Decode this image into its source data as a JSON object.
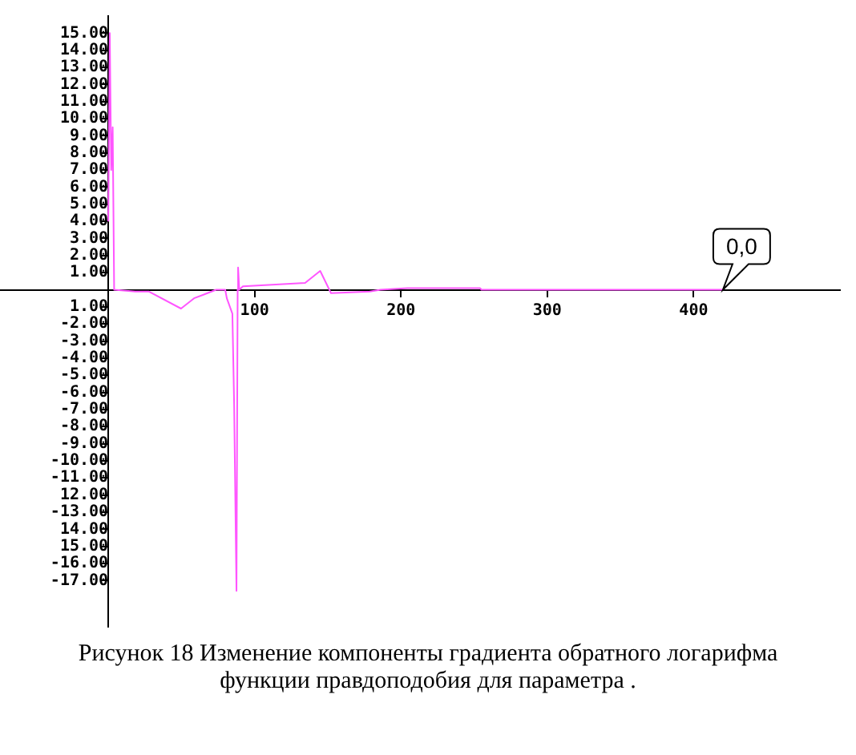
{
  "chart_data": {
    "type": "line",
    "title": "Рисунок 18 Изменение компоненты градиента обратного логарифма функции правдоподобия для параметра .",
    "x": [
      0,
      1,
      2,
      3,
      4,
      18.5,
      27.6,
      49.7,
      58.6,
      73.7,
      79.9,
      81,
      84.8,
      86,
      87.6,
      88.4,
      88.7,
      89.5,
      92,
      134.5,
      144.8,
      152.2,
      178.7,
      186,
      204.4,
      254,
      255,
      420
    ],
    "series": [
      {
        "color": "#ff55ff",
        "values": [
          4,
          15,
          7,
          9.5,
          0,
          -0.1,
          -0.1,
          -1.1,
          -0.5,
          0,
          0,
          -0.5,
          -1.4,
          -6.7,
          -17.6,
          0,
          1.3,
          0,
          0.2,
          0.4,
          1.1,
          -0.2,
          -0.1,
          0,
          0.1,
          0.1,
          0,
          0
        ]
      }
    ],
    "xlim": [
      -74,
      500
    ],
    "ylim": [
      -19.7,
      16
    ],
    "xticks": [
      100,
      200,
      300,
      400
    ],
    "yticks": [
      {
        "value": 15,
        "label": "15.00"
      },
      {
        "value": 14,
        "label": "14.00"
      },
      {
        "value": 13,
        "label": "13.00"
      },
      {
        "value": 12,
        "label": "12.00"
      },
      {
        "value": 11,
        "label": "11.00"
      },
      {
        "value": 10,
        "label": "10.00"
      },
      {
        "value": 9,
        "label": "9.00"
      },
      {
        "value": 8,
        "label": "8.00"
      },
      {
        "value": 7,
        "label": "7.00"
      },
      {
        "value": 6,
        "label": "6.00"
      },
      {
        "value": 5,
        "label": "5.00"
      },
      {
        "value": 4,
        "label": "4.00"
      },
      {
        "value": 3,
        "label": "3.00"
      },
      {
        "value": 2,
        "label": "2.00"
      },
      {
        "value": 1,
        "label": "1.00"
      },
      {
        "value": -1,
        "label": "1.00"
      },
      {
        "value": -2,
        "label": "-2.00"
      },
      {
        "value": -3,
        "label": "-3.00"
      },
      {
        "value": -4,
        "label": "-4.00"
      },
      {
        "value": -5,
        "label": "-5.00"
      },
      {
        "value": -6,
        "label": "-6.00"
      },
      {
        "value": -7,
        "label": "-7.00"
      },
      {
        "value": -8,
        "label": "-8.00"
      },
      {
        "value": -9,
        "label": "-9.00"
      },
      {
        "value": -10,
        "label": "-10.00"
      },
      {
        "value": -11,
        "label": "-11.00"
      },
      {
        "value": -12,
        "label": "12.00"
      },
      {
        "value": -13,
        "label": "-13.00"
      },
      {
        "value": -14,
        "label": "14.00"
      },
      {
        "value": -15,
        "label": "15.00"
      },
      {
        "value": -16,
        "label": "-16.00"
      },
      {
        "value": -17,
        "label": "-17.00"
      }
    ],
    "annotations": [
      {
        "text": "0,0",
        "x": 420,
        "y": 0
      }
    ],
    "grid": false,
    "legend": false,
    "marker": "none",
    "line_style": "solid"
  }
}
